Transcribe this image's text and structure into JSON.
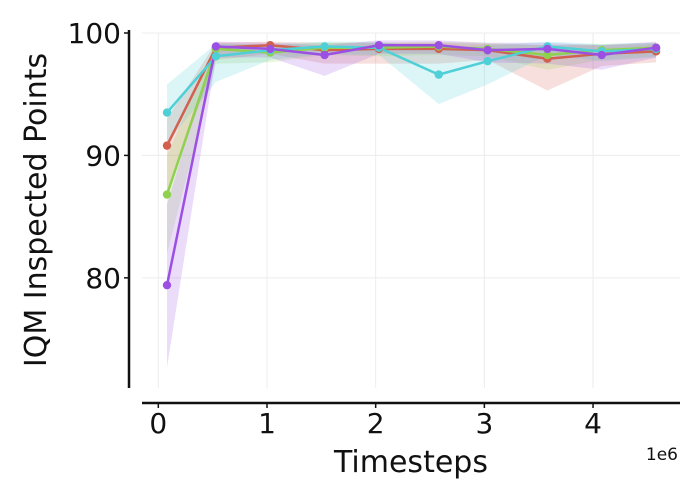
{
  "chart_data": {
    "type": "line",
    "xlabel": "Timesteps",
    "ylabel": "IQM Inspected Points",
    "x_offset_label": "1e6",
    "xlim": [
      -0.15,
      4.8
    ],
    "ylim": [
      71,
      100
    ],
    "xticks": [
      0,
      1,
      2,
      3,
      4
    ],
    "xtick_labels": [
      "0",
      "1",
      "2",
      "3",
      "4"
    ],
    "yticks": [
      80,
      90,
      100
    ],
    "ytick_labels": [
      "80",
      "90",
      "100"
    ],
    "grid": true,
    "x": [
      0.08,
      0.53,
      1.03,
      1.53,
      2.03,
      2.58,
      3.03,
      3.58,
      4.08,
      4.58
    ],
    "series": [
      {
        "color": "#d1604f",
        "values": [
          90.8,
          98.8,
          99.0,
          98.6,
          98.7,
          98.7,
          98.6,
          97.9,
          98.3,
          98.5
        ],
        "lower": [
          87.0,
          97.8,
          98.3,
          97.5,
          97.5,
          97.5,
          97.8,
          95.3,
          97.3,
          97.6
        ],
        "upper": [
          93.0,
          99.2,
          99.3,
          99.2,
          99.2,
          99.2,
          99.1,
          99.0,
          99.0,
          99.1
        ]
      },
      {
        "color": "#8fd14f",
        "values": [
          86.8,
          98.7,
          98.4,
          98.8,
          98.8,
          98.9,
          98.7,
          98.2,
          98.6,
          98.8
        ],
        "lower": [
          82.0,
          97.5,
          97.6,
          98.2,
          98.1,
          98.2,
          98.1,
          97.0,
          97.8,
          98.1
        ],
        "upper": [
          90.0,
          99.2,
          99.0,
          99.2,
          99.2,
          99.3,
          99.2,
          99.0,
          99.1,
          99.2
        ]
      },
      {
        "color": "#4fcfd6",
        "values": [
          93.5,
          98.1,
          98.6,
          98.9,
          98.8,
          96.6,
          97.7,
          98.9,
          98.5,
          98.7
        ],
        "lower": [
          91.0,
          96.0,
          97.8,
          98.3,
          98.2,
          94.2,
          95.8,
          98.2,
          97.7,
          98.0
        ],
        "upper": [
          95.8,
          99.1,
          99.1,
          99.3,
          99.3,
          98.7,
          99.0,
          99.3,
          99.1,
          99.2
        ]
      },
      {
        "color": "#9c50e3",
        "values": [
          79.4,
          98.9,
          98.7,
          98.2,
          99.0,
          99.0,
          98.6,
          98.7,
          98.2,
          98.8
        ],
        "lower": [
          72.7,
          98.0,
          98.0,
          96.5,
          98.3,
          98.3,
          97.6,
          97.5,
          97.0,
          98.0
        ],
        "upper": [
          86.0,
          99.3,
          99.2,
          99.0,
          99.4,
          99.4,
          99.2,
          99.2,
          99.0,
          99.3
        ]
      }
    ]
  }
}
